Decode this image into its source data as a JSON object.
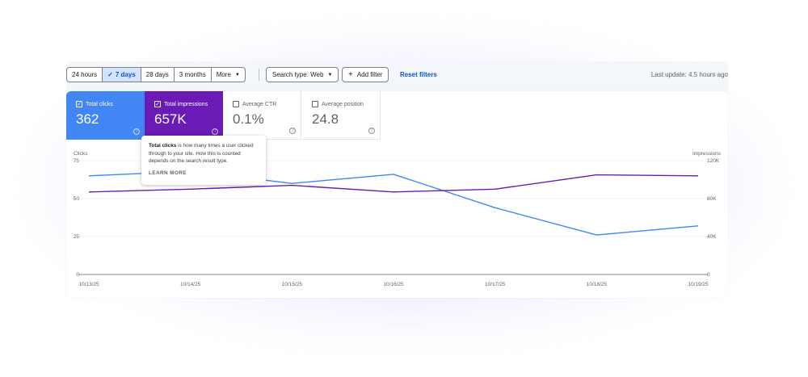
{
  "toolbar": {
    "ranges": [
      {
        "label": "24 hours",
        "active": false
      },
      {
        "label": "7 days",
        "active": true
      },
      {
        "label": "28 days",
        "active": false
      },
      {
        "label": "3 months",
        "active": false
      },
      {
        "label": "More",
        "active": false
      }
    ],
    "search_type": "Search type: Web",
    "add_filter": "Add filter",
    "reset_filters": "Reset filters",
    "last_update": "Last update: 4.5 hours ago"
  },
  "metrics": {
    "clicks": {
      "label": "Total clicks",
      "value": "362",
      "checked": true
    },
    "impressions": {
      "label": "Total impressions",
      "value": "657K",
      "checked": true
    },
    "ctr": {
      "label": "Average CTR",
      "value": "0.1%",
      "checked": false
    },
    "position": {
      "label": "Average position",
      "value": "24.8",
      "checked": false
    }
  },
  "tooltip": {
    "bold": "Total clicks",
    "text": " is how many times a user clicked through to your site. How this is counted depends on the search result type.",
    "link": "LEARN MORE"
  },
  "colors": {
    "clicks": "#4285f4",
    "impressions": "#6a1bb5",
    "accent": "#0b57d0"
  },
  "chart_data": {
    "type": "line",
    "x": [
      "10/13/25",
      "10/14/25",
      "10/15/25",
      "10/16/25",
      "10/17/25",
      "10/18/25",
      "10/19/25"
    ],
    "left_axis": {
      "label": "Clicks",
      "ticks": [
        "75",
        "50",
        "25",
        "0"
      ],
      "ylim": [
        0,
        75
      ]
    },
    "right_axis": {
      "label": "Impressions",
      "ticks": [
        "120K",
        "80K",
        "40K",
        "0"
      ],
      "ylim": [
        0,
        120000
      ]
    },
    "series": [
      {
        "name": "Total clicks",
        "axis": "left",
        "values": [
          65,
          68,
          60,
          66,
          44,
          26,
          32
        ]
      },
      {
        "name": "Total impressions",
        "axis": "right",
        "values": [
          87000,
          90000,
          94000,
          87000,
          90000,
          105000,
          104000
        ]
      }
    ],
    "grid": true
  }
}
